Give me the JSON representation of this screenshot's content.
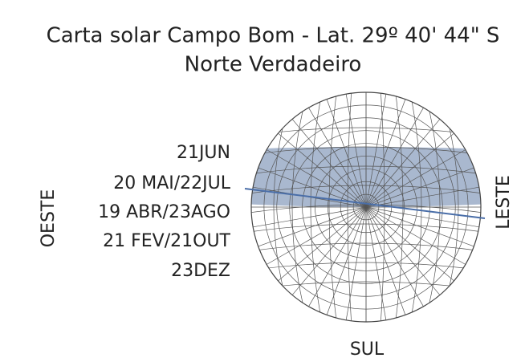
{
  "title": {
    "line1": "Carta solar Campo Bom - Lat. 29º 40' 44\" S",
    "line2": "Norte Verdadeiro"
  },
  "date_labels": [
    "21JUN",
    "20 MAI/22JUL",
    "19 ABR/23AGO",
    "21 FEV/21OUT",
    "23DEZ"
  ],
  "directions": {
    "west": "OESTE",
    "east": "LESTE",
    "south": "SUL"
  }
}
